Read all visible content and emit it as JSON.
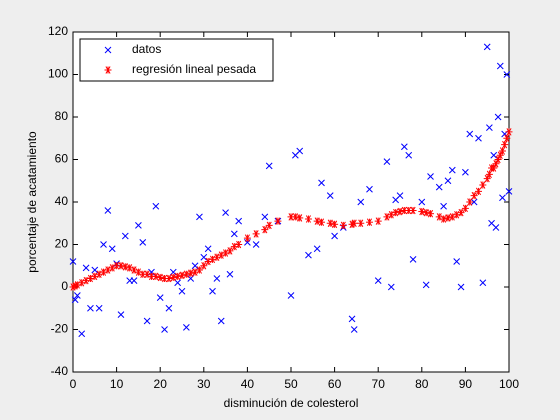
{
  "chart_data": {
    "type": "scatter",
    "xlabel": "disminución de colesterol",
    "ylabel": "porcentaje de acatamiento",
    "xlim": [
      0,
      100
    ],
    "ylim": [
      -40,
      120
    ],
    "xticks": [
      0,
      10,
      20,
      30,
      40,
      50,
      60,
      70,
      80,
      90,
      100
    ],
    "yticks": [
      -40,
      -20,
      0,
      20,
      40,
      60,
      80,
      100,
      120
    ],
    "legend": "upper left",
    "x": [
      0,
      0.5,
      1,
      2,
      3,
      4,
      5,
      6,
      7,
      8,
      9,
      10,
      11,
      12,
      13,
      14,
      15,
      16,
      17,
      18,
      19,
      20,
      21,
      22,
      23,
      24,
      25,
      26,
      27,
      28,
      29,
      30,
      31,
      32,
      33,
      34,
      35,
      36,
      37,
      38,
      40,
      42,
      44,
      45,
      47,
      50,
      51,
      52,
      54,
      56,
      57,
      59,
      60,
      62,
      64,
      64.5,
      66,
      68,
      70,
      72,
      73,
      74,
      75,
      76,
      77,
      78,
      80,
      81,
      82,
      84,
      85,
      86,
      87,
      88,
      89,
      90,
      91,
      92,
      93,
      94,
      95,
      95.5,
      96,
      96.5,
      97,
      97.5,
      98,
      98.5,
      99,
      99.5,
      100
    ],
    "series": [
      {
        "name": "datos",
        "color": "#0000ff",
        "marker": "x",
        "values": [
          12,
          -6,
          -4,
          -22,
          9,
          -10,
          8,
          -10,
          20,
          36,
          18,
          11,
          -13,
          24,
          3,
          3,
          29,
          21,
          -16,
          7,
          38,
          -5,
          -20,
          -10,
          7,
          2,
          -2,
          -19,
          4,
          10,
          33,
          14,
          18,
          -2,
          4,
          -16,
          35,
          6,
          25,
          31,
          21,
          20,
          33,
          57,
          31,
          -4,
          62,
          64,
          15,
          18,
          49,
          43,
          24,
          28,
          -15,
          -20,
          40,
          46,
          3,
          59,
          0,
          41,
          43,
          66,
          62,
          13,
          40,
          1,
          52,
          47,
          38,
          50,
          55,
          12,
          0,
          54,
          72,
          40,
          70,
          2,
          113,
          75,
          30,
          62,
          28,
          80,
          104,
          42,
          72,
          100,
          45
        ]
      },
      {
        "name": "regresión lineal pesada",
        "color": "#ff0000",
        "marker": "*",
        "values": [
          0,
          0.5,
          1,
          2,
          3,
          4,
          5,
          6,
          7,
          8,
          9,
          10,
          10,
          9.5,
          9,
          8,
          7,
          6,
          6,
          5,
          5,
          4.5,
          4,
          4,
          4.5,
          5,
          5.5,
          6,
          6.5,
          7,
          8,
          10,
          12,
          13,
          14,
          15,
          16,
          17,
          19,
          20,
          23,
          25,
          27,
          29,
          31,
          33,
          33,
          32.5,
          32,
          31,
          30.5,
          30,
          29.5,
          29,
          29.5,
          30,
          30,
          30.5,
          31,
          33,
          34,
          35,
          35.5,
          36,
          36,
          36,
          35.5,
          35,
          34.5,
          33,
          32,
          32.5,
          33,
          34,
          35,
          37,
          40,
          43,
          45,
          48,
          51,
          53,
          56,
          56,
          58,
          60,
          62,
          64,
          67,
          70,
          73
        ]
      }
    ]
  }
}
